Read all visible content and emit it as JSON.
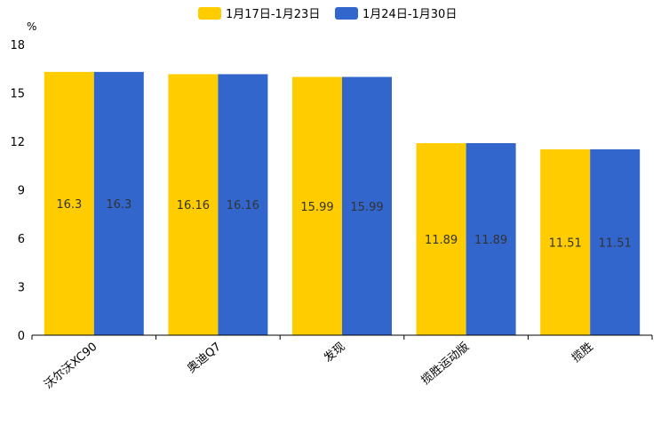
{
  "chart_data": {
    "type": "bar",
    "title": "",
    "unit_label": "%",
    "xlabel": "",
    "ylabel": "",
    "ylim": [
      0,
      18
    ],
    "yticks": [
      "0",
      "3",
      "6",
      "9",
      "12",
      "15",
      "18"
    ],
    "grid": false,
    "legend_position": "top-center",
    "categories": [
      "沃尔沃XC90",
      "奥迪Q7",
      "发现",
      "揽胜运动版",
      "揽胜"
    ],
    "series": [
      {
        "name": "1月17日-1月23日",
        "color": "#ffcc00",
        "values": [
          16.3,
          16.16,
          15.99,
          11.89,
          11.51
        ],
        "labels": [
          "16.3",
          "16.16",
          "15.99",
          "11.89",
          "11.51"
        ]
      },
      {
        "name": "1月24日-1月30日",
        "color": "#3366cc",
        "values": [
          16.3,
          16.16,
          15.99,
          11.89,
          11.51
        ],
        "labels": [
          "16.3",
          "16.16",
          "15.99",
          "11.89",
          "11.51"
        ]
      }
    ]
  }
}
